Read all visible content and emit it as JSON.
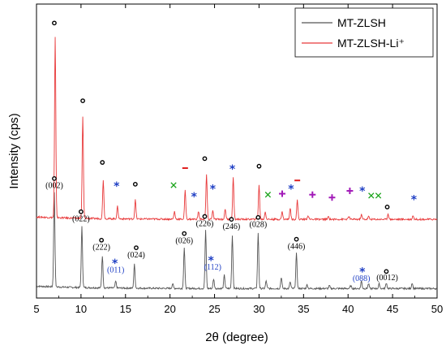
{
  "chart_data": {
    "type": "line",
    "title": "",
    "xlabel": "2θ (degree)",
    "ylabel": "Intensity (cps)",
    "xlim": [
      5,
      50
    ],
    "xticks": [
      5,
      10,
      15,
      20,
      25,
      30,
      35,
      40,
      45,
      50
    ],
    "yticks_shown": false,
    "legend_position": "top-right",
    "colors": {
      "black_series": "#555555",
      "red_series": "#e8393a",
      "blue_labels": "#1f3fc4",
      "green": "#1aa31a",
      "purple": "#a21ab8",
      "red_marker": "#e02020"
    },
    "series": [
      {
        "name": "MT-ZLSH",
        "color": "#555555",
        "baseline": 1.0,
        "peaks": [
          {
            "x": 7.0,
            "h": 10.0
          },
          {
            "x": 10.1,
            "h": 6.4
          },
          {
            "x": 12.4,
            "h": 3.4
          },
          {
            "x": 13.9,
            "h": 0.7
          },
          {
            "x": 16.0,
            "h": 2.5
          },
          {
            "x": 20.3,
            "h": 0.5
          },
          {
            "x": 21.6,
            "h": 4.3
          },
          {
            "x": 24.0,
            "h": 6.1
          },
          {
            "x": 24.9,
            "h": 1.0
          },
          {
            "x": 26.1,
            "h": 1.4
          },
          {
            "x": 27.0,
            "h": 5.6
          },
          {
            "x": 29.9,
            "h": 5.8
          },
          {
            "x": 30.8,
            "h": 0.8
          },
          {
            "x": 32.5,
            "h": 1.2
          },
          {
            "x": 33.5,
            "h": 0.7
          },
          {
            "x": 34.2,
            "h": 3.7
          },
          {
            "x": 35.4,
            "h": 0.4
          },
          {
            "x": 37.9,
            "h": 0.3
          },
          {
            "x": 40.3,
            "h": 0.3
          },
          {
            "x": 41.5,
            "h": 0.8
          },
          {
            "x": 42.3,
            "h": 0.5
          },
          {
            "x": 43.5,
            "h": 0.5
          },
          {
            "x": 44.3,
            "h": 0.6
          },
          {
            "x": 47.2,
            "h": 0.6
          }
        ]
      },
      {
        "name": "MT-ZLSH-Li⁺",
        "color": "#e8393a",
        "baseline": 8.3,
        "peaks": [
          {
            "x": 7.1,
            "h": 19.0
          },
          {
            "x": 10.2,
            "h": 10.7
          },
          {
            "x": 12.5,
            "h": 4.1
          },
          {
            "x": 14.1,
            "h": 1.3
          },
          {
            "x": 16.1,
            "h": 2.0
          },
          {
            "x": 20.5,
            "h": 0.8
          },
          {
            "x": 21.7,
            "h": 3.0
          },
          {
            "x": 23.2,
            "h": 0.8
          },
          {
            "x": 24.1,
            "h": 4.7
          },
          {
            "x": 24.8,
            "h": 0.9
          },
          {
            "x": 26.2,
            "h": 1.1
          },
          {
            "x": 27.1,
            "h": 4.4
          },
          {
            "x": 30.0,
            "h": 3.6
          },
          {
            "x": 30.7,
            "h": 0.8
          },
          {
            "x": 32.6,
            "h": 0.8
          },
          {
            "x": 33.5,
            "h": 1.2
          },
          {
            "x": 34.3,
            "h": 2.0
          },
          {
            "x": 35.5,
            "h": 0.4
          },
          {
            "x": 37.8,
            "h": 0.3
          },
          {
            "x": 40.1,
            "h": 0.3
          },
          {
            "x": 41.5,
            "h": 0.5
          },
          {
            "x": 42.3,
            "h": 0.3
          },
          {
            "x": 44.5,
            "h": 0.6
          },
          {
            "x": 47.3,
            "h": 0.4
          }
        ]
      }
    ],
    "annotations": {
      "circles": [
        {
          "x": 7.0,
          "y": 29.0
        },
        {
          "x": 10.2,
          "y": 20.8
        },
        {
          "x": 12.4,
          "y": 14.3
        },
        {
          "x": 16.1,
          "y": 12.0
        },
        {
          "x": 23.9,
          "y": 14.7
        },
        {
          "x": 30.0,
          "y": 13.9
        },
        {
          "x": 44.4,
          "y": 9.6
        },
        {
          "x": 7.0,
          "y": 12.6
        },
        {
          "x": 10.0,
          "y": 9.1
        },
        {
          "x": 12.3,
          "y": 6.1
        },
        {
          "x": 16.2,
          "y": 5.3
        },
        {
          "x": 21.6,
          "y": 6.8
        },
        {
          "x": 23.9,
          "y": 8.6
        },
        {
          "x": 26.9,
          "y": 8.3
        },
        {
          "x": 29.9,
          "y": 8.5
        },
        {
          "x": 34.2,
          "y": 6.2
        },
        {
          "x": 44.3,
          "y": 2.8
        }
      ],
      "stars": [
        {
          "x": 14.0,
          "y": 11.8
        },
        {
          "x": 22.7,
          "y": 10.7
        },
        {
          "x": 24.8,
          "y": 11.5
        },
        {
          "x": 27.0,
          "y": 13.6
        },
        {
          "x": 33.6,
          "y": 11.5
        },
        {
          "x": 41.6,
          "y": 11.3
        },
        {
          "x": 47.4,
          "y": 10.4
        },
        {
          "x": 13.8,
          "y": 3.7
        },
        {
          "x": 24.6,
          "y": 4.0
        },
        {
          "x": 41.6,
          "y": 2.8
        }
      ],
      "crosses": [
        {
          "x": 20.4,
          "y": 11.9
        },
        {
          "x": 31.0,
          "y": 10.9
        },
        {
          "x": 42.6,
          "y": 10.8
        },
        {
          "x": 43.4,
          "y": 10.8
        }
      ],
      "plus": [
        {
          "x": 32.6,
          "y": 11.0
        },
        {
          "x": 36.0,
          "y": 10.9
        },
        {
          "x": 38.2,
          "y": 10.6
        },
        {
          "x": 40.2,
          "y": 11.3
        }
      ],
      "dashes": [
        {
          "x": 21.7,
          "y": 13.7
        },
        {
          "x": 34.3,
          "y": 12.4
        }
      ],
      "hkl_labels": [
        {
          "text": "(002)",
          "x": 7.0,
          "y": 11.6,
          "color": "black"
        },
        {
          "text": "(022)",
          "x": 10.0,
          "y": 8.1,
          "color": "black"
        },
        {
          "text": "(222)",
          "x": 12.3,
          "y": 5.1,
          "color": "black"
        },
        {
          "text": "(024)",
          "x": 16.2,
          "y": 4.3,
          "color": "black"
        },
        {
          "text": "(026)",
          "x": 21.6,
          "y": 5.8,
          "color": "black"
        },
        {
          "text": "(226)",
          "x": 23.9,
          "y": 7.6,
          "color": "black"
        },
        {
          "text": "(246)",
          "x": 26.9,
          "y": 7.3,
          "color": "black"
        },
        {
          "text": "(028)",
          "x": 29.9,
          "y": 7.5,
          "color": "black"
        },
        {
          "text": "(446)",
          "x": 34.2,
          "y": 5.2,
          "color": "black"
        },
        {
          "text": "(0012)",
          "x": 44.4,
          "y": 1.9,
          "color": "black"
        },
        {
          "text": "(011)",
          "x": 13.9,
          "y": 2.7,
          "color": "blue"
        },
        {
          "text": "(112)",
          "x": 24.8,
          "y": 3.0,
          "color": "blue"
        },
        {
          "text": "(088)",
          "x": 41.5,
          "y": 1.8,
          "color": "blue"
        }
      ]
    }
  }
}
